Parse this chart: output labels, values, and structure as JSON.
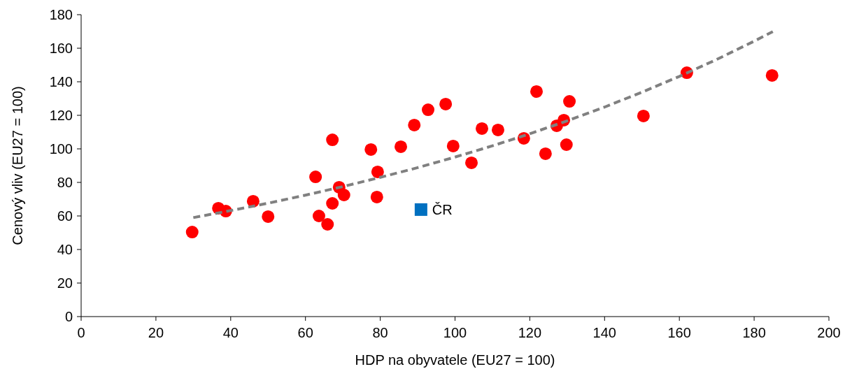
{
  "chart_data": {
    "type": "scatter",
    "xlabel": "HDP na obyvatele (EU27 = 100)",
    "ylabel": "Cenový vliv (EU27 = 100)",
    "xlim": [
      0,
      200
    ],
    "xticks": [
      0,
      20,
      40,
      60,
      80,
      100,
      120,
      140,
      160,
      180,
      200
    ],
    "ylim": [
      0,
      180
    ],
    "yticks": [
      0,
      20,
      40,
      60,
      80,
      100,
      120,
      140,
      160,
      180
    ],
    "grid": false,
    "legend": false,
    "series": [
      {
        "type": "line",
        "color": "#808080",
        "line_style": "dashed",
        "marker": "none",
        "x": [
          30,
          40,
          50,
          60,
          70,
          80,
          90,
          100,
          110,
          120,
          130,
          140,
          150,
          160,
          170,
          180,
          185
        ],
        "values": [
          59.0,
          63.2,
          67.6,
          72.4,
          77.5,
          83.0,
          88.8,
          95.1,
          101.8,
          109.0,
          116.7,
          124.9,
          133.8,
          143.2,
          153.3,
          164.2,
          169.9
        ]
      },
      {
        "color": "#ff0000",
        "marker": "circle",
        "x": [
          29.7,
          36.7,
          38.7,
          46.0,
          50.0,
          62.7,
          63.6,
          65.9,
          67.2,
          67.2,
          69.0,
          70.3,
          77.5,
          79.1,
          79.3,
          85.5,
          89.1,
          92.8,
          97.5,
          99.5,
          104.4,
          107.2,
          111.5,
          118.4,
          121.8,
          124.2,
          127.2,
          129.1,
          129.8,
          130.6,
          150.4,
          162.0,
          184.8
        ],
        "values": [
          50.4,
          64.6,
          62.9,
          68.8,
          59.6,
          83.3,
          60.0,
          55.0,
          105.4,
          67.5,
          77.1,
          72.5,
          99.6,
          71.3,
          86.3,
          101.3,
          114.2,
          123.3,
          126.7,
          101.7,
          91.7,
          112.1,
          111.3,
          106.3,
          134.2,
          97.1,
          113.8,
          117.1,
          102.5,
          128.3,
          119.6,
          145.4,
          143.8
        ]
      },
      {
        "name": "ČR",
        "color": "#0070c0",
        "marker": "square",
        "x": [
          90.9
        ],
        "values": [
          63.8
        ]
      }
    ]
  }
}
